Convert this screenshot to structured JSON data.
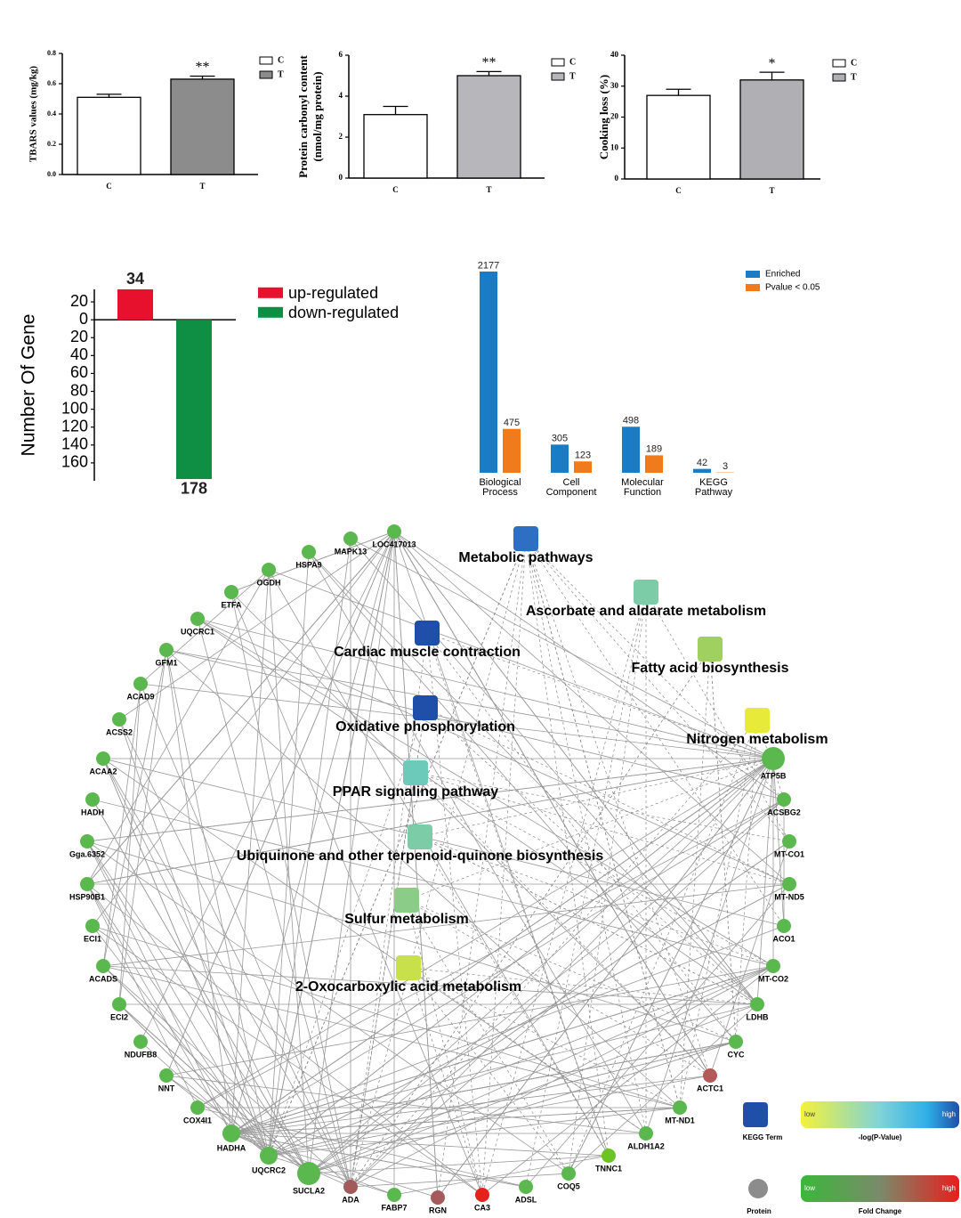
{
  "chart_data": [
    {
      "type": "bar",
      "ylabel": "TBARS values (mg/kg)",
      "categories": [
        "C",
        "T"
      ],
      "series": [
        {
          "name": "C",
          "color": "#ffffff",
          "values": [
            0.51,
            null
          ],
          "errors": [
            0.02,
            null
          ]
        },
        {
          "name": "T",
          "color": "#8c8c8c",
          "values": [
            null,
            0.63
          ],
          "errors": [
            null,
            0.02
          ]
        }
      ],
      "ylim": [
        0,
        0.8
      ],
      "yticks": [
        {
          "value": 0,
          "label": "0.0"
        },
        0.2,
        0.4,
        0.6,
        0.8
      ],
      "annotations": [
        {
          "x": "T",
          "text": "**"
        }
      ]
    },
    {
      "type": "bar",
      "ylabel": [
        "Protein carbonyl content",
        "(nmol/mg protein)"
      ],
      "categories": [
        "C",
        "T"
      ],
      "series": [
        {
          "name": "C",
          "color": "#ffffff",
          "values": [
            3.1,
            null
          ],
          "errors": [
            0.4,
            null
          ]
        },
        {
          "name": "T",
          "color": "#b7b7bb",
          "values": [
            null,
            5.0
          ],
          "errors": [
            null,
            0.2
          ]
        }
      ],
      "ylim": [
        0,
        6
      ],
      "yticks": [
        0,
        2,
        4,
        6
      ],
      "annotations": [
        {
          "x": "T",
          "text": "**"
        }
      ]
    },
    {
      "type": "bar",
      "ylabel": "Cooking loss (%)",
      "categories": [
        "C",
        "T"
      ],
      "series": [
        {
          "name": "C",
          "color": "#ffffff",
          "values": [
            27,
            null
          ],
          "errors": [
            2,
            null
          ]
        },
        {
          "name": "T",
          "color": "#b0b0b4",
          "values": [
            null,
            32
          ],
          "errors": [
            null,
            2.5
          ]
        }
      ],
      "ylim": [
        0,
        40
      ],
      "yticks": [
        0,
        10,
        20,
        30,
        40
      ],
      "annotations": [
        {
          "x": "T",
          "text": "*"
        }
      ]
    },
    {
      "type": "bar",
      "ylabel": "Number Of Gene",
      "categories": [
        null,
        null
      ],
      "show_values": true,
      "series": [
        {
          "name": "up-regulated",
          "color": "#e8112d",
          "values": [
            34,
            null
          ]
        },
        {
          "name": "down-regulated",
          "color": "#0f8f44",
          "values": [
            null,
            -178
          ],
          "value_labels": [
            null,
            "178"
          ]
        }
      ],
      "ylim": [
        -180,
        34
      ],
      "yticks": [
        20,
        0,
        {
          "value": -20,
          "label": "20"
        },
        {
          "value": -40,
          "label": "40"
        },
        {
          "value": -60,
          "label": "60"
        },
        {
          "value": -80,
          "label": "80"
        },
        {
          "value": -100,
          "label": "100"
        },
        {
          "value": -120,
          "label": "120"
        },
        {
          "value": -140,
          "label": "140"
        },
        {
          "value": -160,
          "label": "160"
        }
      ]
    },
    {
      "type": "bar",
      "categories": [
        "Biological Process",
        "Cell Component",
        "Molecular Function",
        "KEGG Pathway"
      ],
      "show_values": true,
      "series": [
        {
          "name": "Enriched",
          "color": "#1b7cc6",
          "values": [
            2177,
            305,
            498,
            42
          ]
        },
        {
          "name": "Pvalue < 0.05",
          "color": "#f07b1c",
          "values": [
            475,
            123,
            189,
            3
          ]
        }
      ]
    }
  ],
  "network": {
    "kegg_terms": [
      {
        "label": "Metabolic pathways",
        "color": "#2e6fc4"
      },
      {
        "label": "Ascorbate and aldarate metabolism",
        "color": "#7dcca8"
      },
      {
        "label": "Cardiac muscle contraction",
        "color": "#1f4fa8"
      },
      {
        "label": "Fatty acid biosynthesis",
        "color": "#9fd060"
      },
      {
        "label": "Oxidative phosphorylation",
        "color": "#1f4fa8"
      },
      {
        "label": "Nitrogen metabolism",
        "color": "#e8ea3a"
      },
      {
        "label": "PPAR signaling pathway",
        "color": "#6ccaba"
      },
      {
        "label": "Ubiquinone and other terpenoid-quinone biosynthesis",
        "color": "#7dcca8"
      },
      {
        "label": "Sulfur metabolism",
        "color": "#8acc88"
      },
      {
        "label": "2-Oxocarboxylic acid metabolism",
        "color": "#c8e04a"
      }
    ],
    "proteins": [
      {
        "label": "LOC417013",
        "color": "#5bb84e"
      },
      {
        "label": "MAPK13",
        "color": "#5bb84e"
      },
      {
        "label": "HSPA9",
        "color": "#5bb84e"
      },
      {
        "label": "OGDH",
        "color": "#5bb84e"
      },
      {
        "label": "ETFA",
        "color": "#5bb84e"
      },
      {
        "label": "UQCRC1",
        "color": "#5bb84e"
      },
      {
        "label": "GFM1",
        "color": "#5bb84e"
      },
      {
        "label": "ACAD9",
        "color": "#5bb84e"
      },
      {
        "label": "ACSS2",
        "color": "#5bb84e"
      },
      {
        "label": "ACAA2",
        "color": "#5bb84e"
      },
      {
        "label": "HADH",
        "color": "#5bb84e"
      },
      {
        "label": "Gga.6352",
        "color": "#5bb84e"
      },
      {
        "label": "HSP90B1",
        "color": "#5bb84e"
      },
      {
        "label": "ECI1",
        "color": "#5bb84e"
      },
      {
        "label": "ACADS",
        "color": "#5bb84e"
      },
      {
        "label": "ECI2",
        "color": "#5bb84e"
      },
      {
        "label": "NDUFB8",
        "color": "#5bb84e"
      },
      {
        "label": "NNT",
        "color": "#5bb84e"
      },
      {
        "label": "COX4I1",
        "color": "#5bb84e"
      },
      {
        "label": "HADHA",
        "color": "#5bb84e"
      },
      {
        "label": "UQCRC2",
        "color": "#5bb84e"
      },
      {
        "label": "SUCLA2",
        "color": "#5bb84e"
      },
      {
        "label": "ADA",
        "color": "#a35a5a"
      },
      {
        "label": "FABP7",
        "color": "#5bb84e"
      },
      {
        "label": "RGN",
        "color": "#a55b5b"
      },
      {
        "label": "CA3",
        "color": "#e3221c"
      },
      {
        "label": "ADSL",
        "color": "#5bb84e"
      },
      {
        "label": "COQ5",
        "color": "#5bb84e"
      },
      {
        "label": "TNNC1",
        "color": "#6cc424"
      },
      {
        "label": "ALDH1A2",
        "color": "#5bb84e"
      },
      {
        "label": "MT-ND1",
        "color": "#5bb84e"
      },
      {
        "label": "ACTC1",
        "color": "#b35a58"
      },
      {
        "label": "CYC",
        "color": "#5bb84e"
      },
      {
        "label": "LDHB",
        "color": "#5bb84e"
      },
      {
        "label": "MT-CO2",
        "color": "#5bb84e"
      },
      {
        "label": "ACO1",
        "color": "#5bb84e"
      },
      {
        "label": "MT-ND5",
        "color": "#5bb84e"
      },
      {
        "label": "MT-CO1",
        "color": "#5bb84e"
      },
      {
        "label": "ACSBG2",
        "color": "#5bb84e"
      },
      {
        "label": "ATP5B",
        "color": "#5bb84e"
      }
    ],
    "legend": {
      "kegg_term": "KEGG Term",
      "pvalue_low": "low",
      "pvalue_high": "high",
      "pvalue_title": "-log(P-Value)",
      "protein": "Protein",
      "fc_low": "low",
      "fc_high": "high",
      "fc_title": "Fold Change"
    }
  }
}
